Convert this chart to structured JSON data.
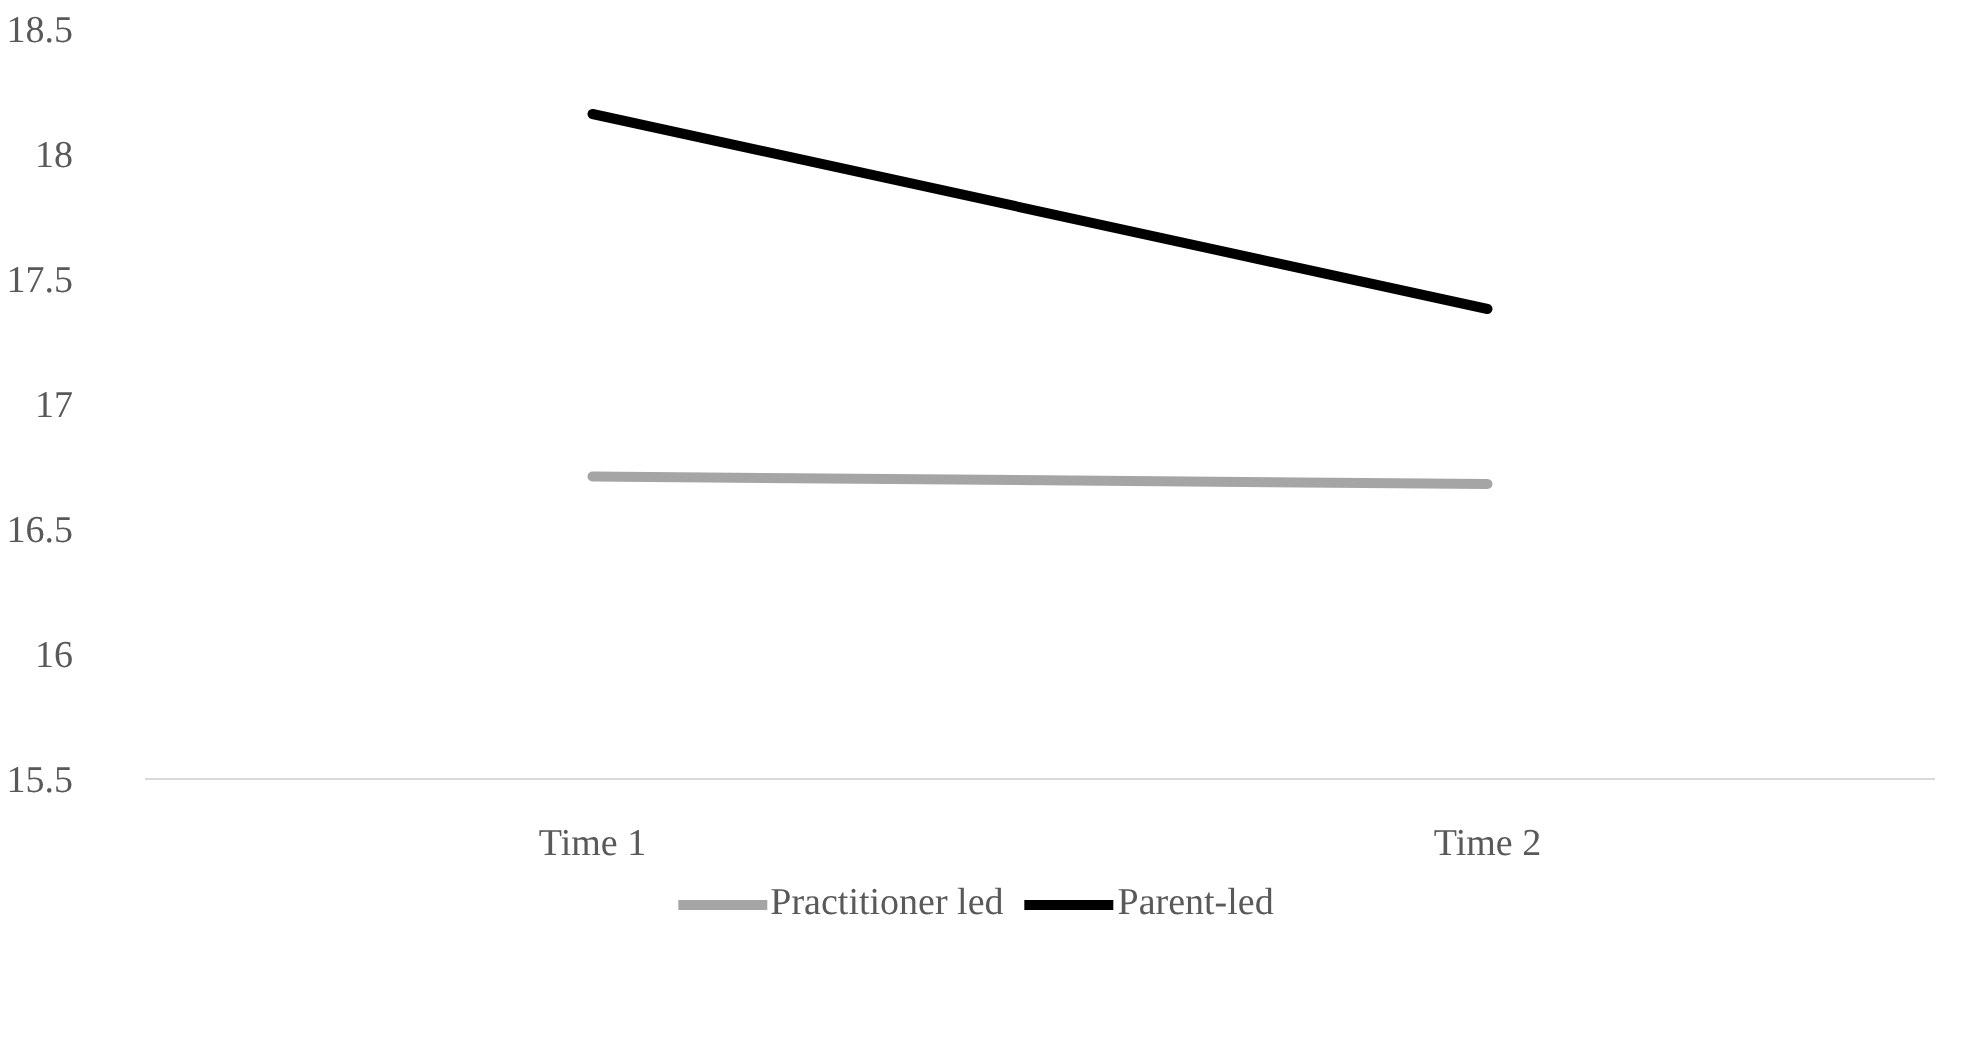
{
  "chart_data": {
    "type": "line",
    "categories": [
      "Time 1",
      "Time 2"
    ],
    "series": [
      {
        "name": "Practitioner led",
        "color": "#a5a5a5",
        "values": [
          16.71,
          16.68
        ]
      },
      {
        "name": "Parent-led",
        "color": "#000000",
        "values": [
          18.16,
          17.38
        ]
      }
    ],
    "ylim": [
      15.5,
      18.5
    ],
    "yticks": [
      15.5,
      16,
      16.5,
      17,
      17.5,
      18,
      18.5
    ],
    "grid": false,
    "legend": "bottom",
    "marker": "none",
    "line_style": "solid"
  }
}
